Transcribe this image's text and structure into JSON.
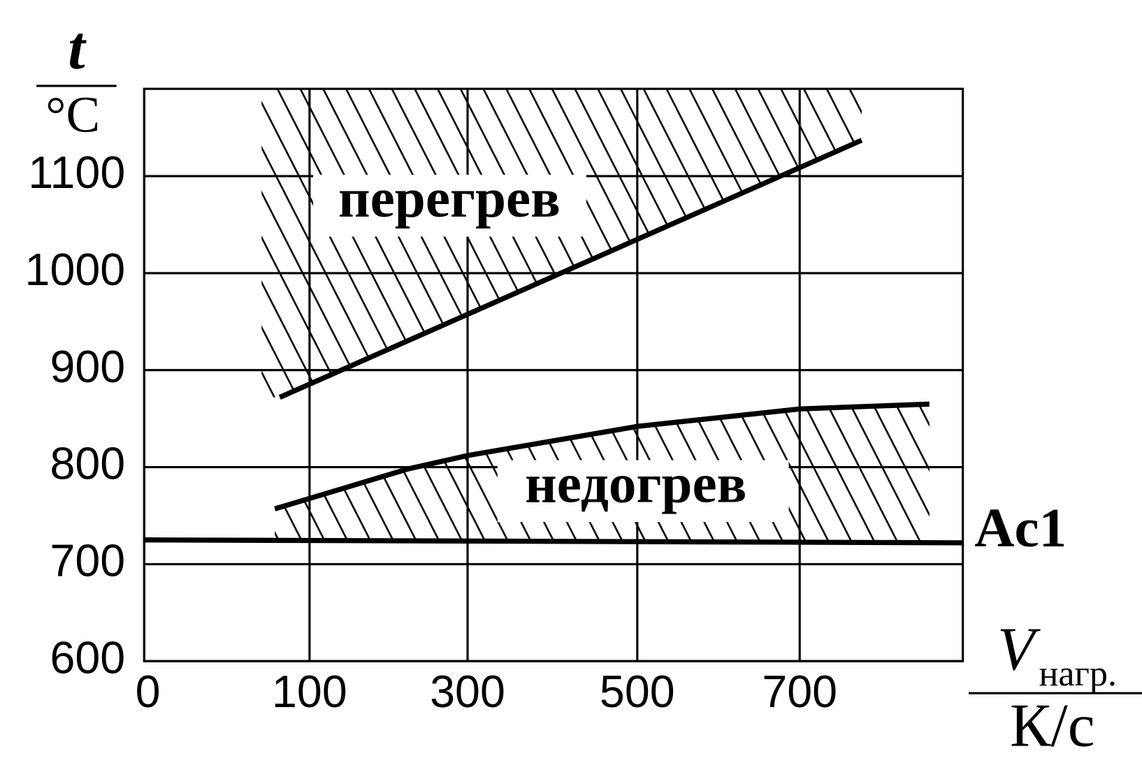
{
  "chart_data": {
    "type": "line",
    "y_label": {
      "symbol": "t",
      "unit": "°C"
    },
    "x_label": {
      "symbol": "V",
      "subscript": "нагр.",
      "unit": "К/с"
    },
    "xlim": [
      0,
      900
    ],
    "xticks": [
      0,
      100,
      300,
      500,
      700
    ],
    "ylim": [
      600,
      1190
    ],
    "yticks": [
      600,
      700,
      800,
      900,
      1000,
      1100
    ],
    "grid": true,
    "series": [
      {
        "name": "перегрев",
        "color": "#000000",
        "x": [
          82,
          776
        ],
        "values": [
          872,
          1137
        ],
        "hatch": "above"
      },
      {
        "name": "недогрев",
        "color": "#000000",
        "x": [
          79,
          224,
          300,
          500,
          700,
          859
        ],
        "values": [
          757,
          798,
          812,
          842,
          860,
          865
        ],
        "hatch": "below"
      },
      {
        "name": "Ac1",
        "color": "#000000",
        "x": [
          0,
          900
        ],
        "values": [
          725,
          722
        ]
      }
    ]
  }
}
